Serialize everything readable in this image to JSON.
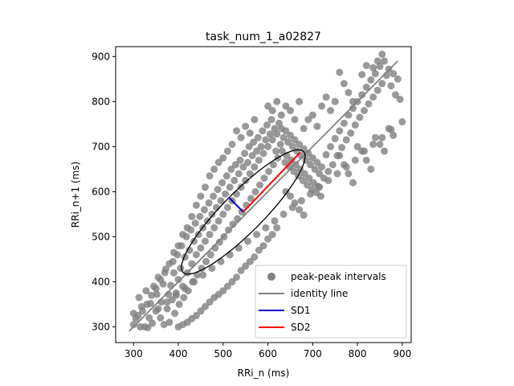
{
  "chart_data": {
    "type": "scatter",
    "title": "task_num_1_a02827",
    "xlabel": "RRi_n (ms)",
    "ylabel": "RRi_n+1 (ms)",
    "xlim": [
      260,
      920
    ],
    "ylim": [
      265,
      922
    ],
    "xticks": [
      "300",
      "400",
      "500",
      "600",
      "700",
      "800",
      "900"
    ],
    "yticks": [
      "300",
      "400",
      "500",
      "600",
      "700",
      "800",
      "900"
    ],
    "xtick_values": [
      300,
      400,
      500,
      600,
      700,
      800,
      900
    ],
    "ytick_values": [
      300,
      400,
      500,
      600,
      700,
      800,
      900
    ],
    "grid": false,
    "legend_position": "lower-right",
    "legend": [
      "peak-peak intervals",
      "identity line",
      "SD1",
      "SD2"
    ],
    "colors": {
      "points": "#808080",
      "identity": "#808080",
      "sd1": "#0000cc",
      "sd2": "#ff0000",
      "ellipse": "#000000"
    },
    "identity_line": {
      "x": [
        290,
        890
      ],
      "y": [
        290,
        890
      ]
    },
    "ellipse": {
      "center": [
        545,
        555
      ],
      "semi_major": 190,
      "semi_minor": 45,
      "angle_deg": 45
    },
    "sd1_segment": {
      "x": [
        545,
        514
      ],
      "y": [
        555,
        586
      ]
    },
    "sd2_segment": {
      "x": [
        545,
        672
      ],
      "y": [
        555,
        687
      ]
    },
    "points": [
      [
        300,
        330
      ],
      [
        305,
        318
      ],
      [
        312,
        365
      ],
      [
        318,
        345
      ],
      [
        325,
        300
      ],
      [
        328,
        380
      ],
      [
        332,
        298
      ],
      [
        338,
        352
      ],
      [
        342,
        308
      ],
      [
        345,
        390
      ],
      [
        350,
        335
      ],
      [
        352,
        372
      ],
      [
        355,
        410
      ],
      [
        360,
        320
      ],
      [
        362,
        355
      ],
      [
        366,
        395
      ],
      [
        368,
        305
      ],
      [
        372,
        428
      ],
      [
        375,
        340
      ],
      [
        378,
        372
      ],
      [
        380,
        310
      ],
      [
        383,
        392
      ],
      [
        386,
        360
      ],
      [
        388,
        445
      ],
      [
        390,
        420
      ],
      [
        392,
        330
      ],
      [
        395,
        375
      ],
      [
        398,
        460
      ],
      [
        400,
        405
      ],
      [
        402,
        350
      ],
      [
        405,
        430
      ],
      [
        407,
        480
      ],
      [
        410,
        390
      ],
      [
        412,
        365
      ],
      [
        415,
        455
      ],
      [
        418,
        500
      ],
      [
        420,
        420
      ],
      [
        422,
        380
      ],
      [
        425,
        470
      ],
      [
        428,
        515
      ],
      [
        430,
        440
      ],
      [
        432,
        400
      ],
      [
        435,
        490
      ],
      [
        438,
        530
      ],
      [
        440,
        460
      ],
      [
        442,
        415
      ],
      [
        445,
        505
      ],
      [
        448,
        545
      ],
      [
        450,
        475
      ],
      [
        452,
        430
      ],
      [
        455,
        520
      ],
      [
        458,
        560
      ],
      [
        460,
        490
      ],
      [
        462,
        445
      ],
      [
        465,
        535
      ],
      [
        468,
        575
      ],
      [
        470,
        505
      ],
      [
        472,
        460
      ],
      [
        475,
        550
      ],
      [
        478,
        590
      ],
      [
        480,
        520
      ],
      [
        482,
        475
      ],
      [
        485,
        565
      ],
      [
        488,
        605
      ],
      [
        490,
        535
      ],
      [
        492,
        488
      ],
      [
        495,
        580
      ],
      [
        498,
        620
      ],
      [
        500,
        550
      ],
      [
        502,
        500
      ],
      [
        505,
        595
      ],
      [
        508,
        635
      ],
      [
        510,
        565
      ],
      [
        512,
        515
      ],
      [
        515,
        610
      ],
      [
        518,
        650
      ],
      [
        520,
        580
      ],
      [
        522,
        528
      ],
      [
        525,
        625
      ],
      [
        528,
        660
      ],
      [
        530,
        595
      ],
      [
        532,
        540
      ],
      [
        535,
        640
      ],
      [
        538,
        670
      ],
      [
        540,
        610
      ],
      [
        542,
        555
      ],
      [
        545,
        655
      ],
      [
        548,
        685
      ],
      [
        550,
        625
      ],
      [
        552,
        570
      ],
      [
        555,
        665
      ],
      [
        558,
        700
      ],
      [
        560,
        640
      ],
      [
        562,
        585
      ],
      [
        565,
        680
      ],
      [
        568,
        710
      ],
      [
        570,
        655
      ],
      [
        572,
        600
      ],
      [
        575,
        690
      ],
      [
        578,
        720
      ],
      [
        580,
        670
      ],
      [
        582,
        615
      ],
      [
        585,
        700
      ],
      [
        588,
        735
      ],
      [
        590,
        685
      ],
      [
        592,
        630
      ],
      [
        595,
        715
      ],
      [
        598,
        748
      ],
      [
        600,
        700
      ],
      [
        602,
        645
      ],
      [
        605,
        728
      ],
      [
        608,
        760
      ],
      [
        610,
        715
      ],
      [
        612,
        660
      ],
      [
        615,
        740
      ],
      [
        618,
        690
      ],
      [
        620,
        728
      ],
      [
        622,
        675
      ],
      [
        625,
        752
      ],
      [
        628,
        705
      ],
      [
        630,
        740
      ],
      [
        632,
        690
      ],
      [
        635,
        720
      ],
      [
        638,
        665
      ],
      [
        640,
        735
      ],
      [
        642,
        680
      ],
      [
        645,
        710
      ],
      [
        648,
        655
      ],
      [
        650,
        725
      ],
      [
        652,
        670
      ],
      [
        655,
        700
      ],
      [
        658,
        645
      ],
      [
        660,
        715
      ],
      [
        662,
        660
      ],
      [
        665,
        690
      ],
      [
        668,
        635
      ],
      [
        670,
        705
      ],
      [
        672,
        650
      ],
      [
        675,
        680
      ],
      [
        678,
        625
      ],
      [
        680,
        695
      ],
      [
        682,
        640
      ],
      [
        685,
        670
      ],
      [
        688,
        615
      ],
      [
        690,
        685
      ],
      [
        692,
        630
      ],
      [
        695,
        660
      ],
      [
        698,
        605
      ],
      [
        700,
        675
      ],
      [
        702,
        620
      ],
      [
        705,
        650
      ],
      [
        708,
        598
      ],
      [
        710,
        665
      ],
      [
        712,
        612
      ],
      [
        715,
        640
      ],
      [
        718,
        590
      ],
      [
        720,
        655
      ],
      [
        725,
        630
      ],
      [
        730,
        682
      ],
      [
        735,
        645
      ],
      [
        740,
        700
      ],
      [
        745,
        660
      ],
      [
        750,
        718
      ],
      [
        755,
        680
      ],
      [
        760,
        735
      ],
      [
        765,
        698
      ],
      [
        770,
        752
      ],
      [
        775,
        715
      ],
      [
        780,
        770
      ],
      [
        785,
        730
      ],
      [
        790,
        785
      ],
      [
        795,
        748
      ],
      [
        800,
        800
      ],
      [
        805,
        765
      ],
      [
        810,
        815
      ],
      [
        815,
        780
      ],
      [
        820,
        832
      ],
      [
        825,
        795
      ],
      [
        830,
        848
      ],
      [
        835,
        810
      ],
      [
        840,
        862
      ],
      [
        845,
        825
      ],
      [
        850,
        878
      ],
      [
        855,
        840
      ],
      [
        860,
        890
      ],
      [
        865,
        858
      ],
      [
        870,
        872
      ],
      [
        875,
        835
      ],
      [
        880,
        862
      ],
      [
        885,
        815
      ],
      [
        890,
        850
      ],
      [
        895,
        805
      ],
      [
        900,
        755
      ],
      [
        760,
        865
      ],
      [
        770,
        840
      ],
      [
        780,
        820
      ],
      [
        790,
        800
      ],
      [
        810,
        860
      ],
      [
        820,
        880
      ],
      [
        835,
        875
      ],
      [
        845,
        890
      ],
      [
        855,
        905
      ],
      [
        760,
        680
      ],
      [
        770,
        660
      ],
      [
        780,
        640
      ],
      [
        790,
        620
      ],
      [
        800,
        700
      ],
      [
        810,
        690
      ],
      [
        820,
        670
      ],
      [
        830,
        650
      ],
      [
        840,
        720
      ],
      [
        850,
        705
      ],
      [
        860,
        690
      ],
      [
        870,
        740
      ],
      [
        880,
        725
      ],
      [
        740,
        780
      ],
      [
        750,
        800
      ],
      [
        720,
        790
      ],
      [
        730,
        810
      ],
      [
        700,
        770
      ],
      [
        710,
        745
      ],
      [
        690,
        760
      ],
      [
        680,
        740
      ],
      [
        660,
        760
      ],
      [
        650,
        780
      ],
      [
        670,
        800
      ],
      [
        640,
        790
      ],
      [
        630,
        770
      ],
      [
        620,
        800
      ],
      [
        610,
        780
      ],
      [
        600,
        790
      ],
      [
        560,
        730
      ],
      [
        570,
        760
      ],
      [
        550,
        745
      ],
      [
        540,
        720
      ],
      [
        530,
        735
      ],
      [
        520,
        705
      ],
      [
        510,
        690
      ],
      [
        500,
        675
      ],
      [
        490,
        665
      ],
      [
        480,
        650
      ],
      [
        470,
        635
      ],
      [
        460,
        610
      ],
      [
        450,
        590
      ],
      [
        440,
        570
      ],
      [
        430,
        545
      ],
      [
        420,
        520
      ],
      [
        410,
        505
      ],
      [
        400,
        480
      ],
      [
        390,
        465
      ],
      [
        380,
        440
      ],
      [
        370,
        420
      ],
      [
        360,
        405
      ],
      [
        350,
        385
      ],
      [
        340,
        370
      ],
      [
        330,
        350
      ],
      [
        320,
        335
      ],
      [
        310,
        325
      ],
      [
        300,
        305
      ],
      [
        315,
        300
      ],
      [
        335,
        320
      ],
      [
        355,
        340
      ],
      [
        375,
        355
      ],
      [
        395,
        370
      ],
      [
        415,
        385
      ],
      [
        435,
        400
      ],
      [
        455,
        415
      ],
      [
        475,
        430
      ],
      [
        495,
        445
      ],
      [
        515,
        460
      ],
      [
        535,
        475
      ],
      [
        555,
        490
      ],
      [
        575,
        505
      ],
      [
        595,
        520
      ],
      [
        615,
        535
      ],
      [
        635,
        550
      ],
      [
        655,
        565
      ],
      [
        675,
        580
      ],
      [
        695,
        595
      ],
      [
        715,
        610
      ],
      [
        735,
        625
      ],
      [
        755,
        640
      ],
      [
        775,
        655
      ],
      [
        795,
        670
      ],
      [
        815,
        690
      ],
      [
        835,
        705
      ],
      [
        855,
        720
      ],
      [
        875,
        738
      ],
      [
        640,
        600
      ],
      [
        650,
        590
      ],
      [
        660,
        575
      ],
      [
        670,
        560
      ],
      [
        680,
        548
      ],
      [
        620,
        520
      ],
      [
        610,
        505
      ],
      [
        600,
        495
      ],
      [
        590,
        480
      ],
      [
        580,
        470
      ],
      [
        570,
        455
      ],
      [
        560,
        445
      ],
      [
        550,
        435
      ],
      [
        540,
        425
      ],
      [
        530,
        410
      ],
      [
        520,
        400
      ],
      [
        510,
        390
      ],
      [
        500,
        380
      ],
      [
        490,
        372
      ],
      [
        480,
        365
      ],
      [
        470,
        355
      ],
      [
        460,
        345
      ],
      [
        450,
        335
      ],
      [
        440,
        325
      ],
      [
        430,
        318
      ],
      [
        420,
        310
      ],
      [
        410,
        305
      ],
      [
        400,
        300
      ]
    ]
  },
  "legend_entries": [
    {
      "label": "peak-peak intervals"
    },
    {
      "label": "identity line"
    },
    {
      "label": "SD1"
    },
    {
      "label": "SD2"
    }
  ]
}
